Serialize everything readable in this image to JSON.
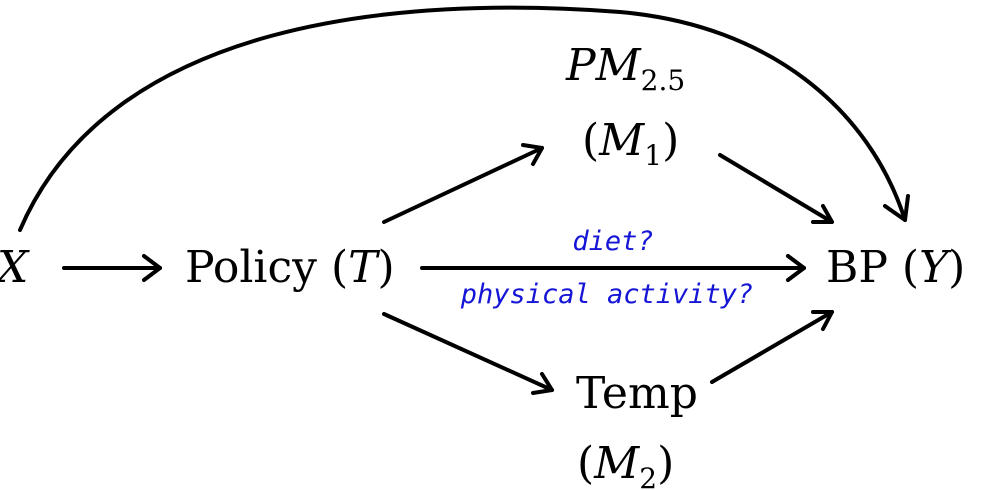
{
  "nodes": {
    "x": {
      "name": "X"
    },
    "policy": {
      "label": "Policy (",
      "var": "T",
      "close": ")"
    },
    "pm25": {
      "name": "PM",
      "sub": "2.5",
      "paren_open": "(",
      "var": "M",
      "var_sub": "1",
      "paren_close": ")"
    },
    "temp": {
      "label": "Temp",
      "paren_open": "(",
      "var": "M",
      "var_sub": "2",
      "paren_close": ")"
    },
    "bp": {
      "label": "BP (",
      "var": "Y",
      "close": ")"
    }
  },
  "edge_labels": {
    "top": "diet?",
    "bottom": "physical activity?"
  },
  "colors": {
    "edge": "#000000",
    "edge_label": "#1515d6"
  }
}
